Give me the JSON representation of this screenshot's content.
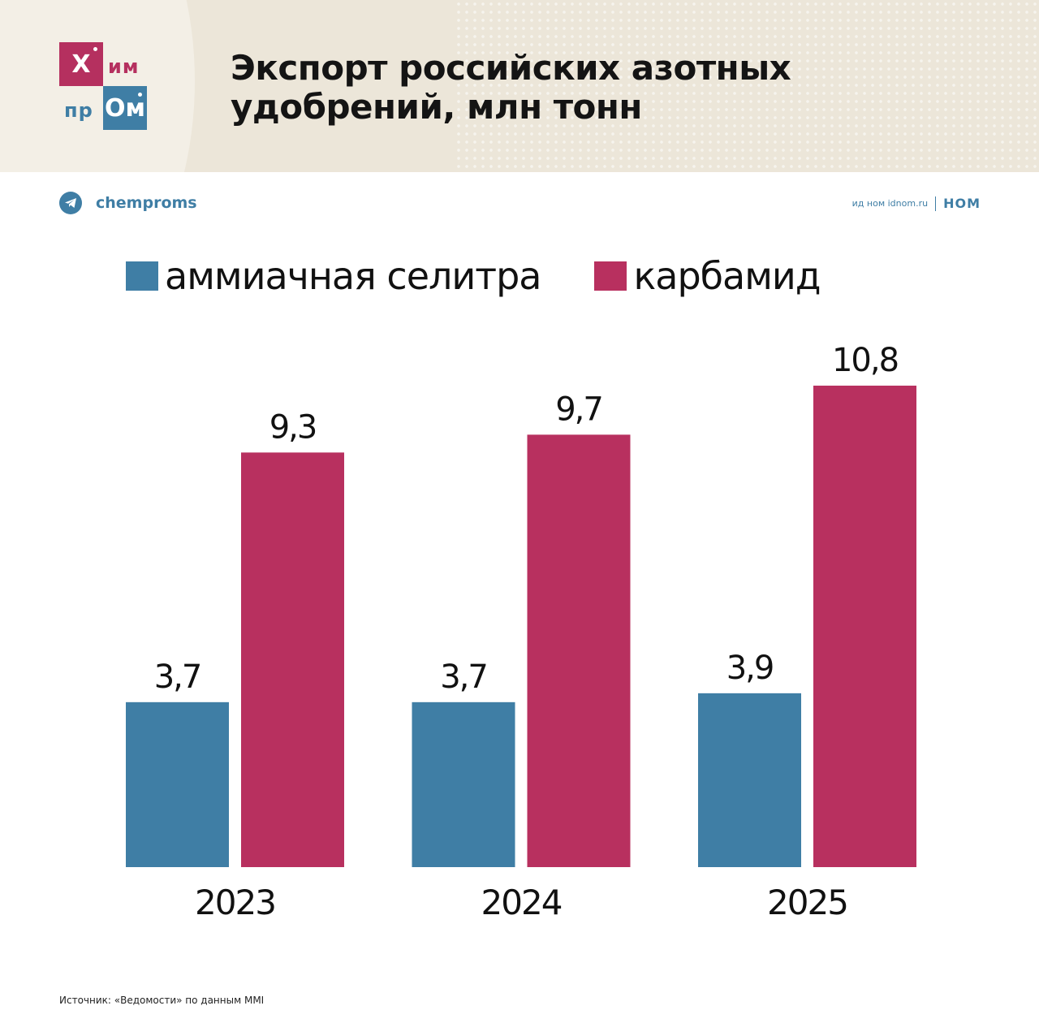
{
  "header": {
    "title": "Экспорт российских азотных удобрений, млн тонн",
    "logo": {
      "cell1": "Х",
      "text1": "им",
      "text2": "пр",
      "cell2": "Ом"
    }
  },
  "channel": {
    "name": "chemproms",
    "icon": "telegram-icon"
  },
  "brand": {
    "site": "ид ном idnom.ru",
    "name": "НОМ"
  },
  "colors": {
    "ammonium": "#3f7ea5",
    "urea": "#b8305f",
    "header_bg": "#ece6d9"
  },
  "chart_data": {
    "type": "bar",
    "title": "Экспорт российских азотных удобрений, млн тонн",
    "categories": [
      "2023",
      "2024",
      "2025"
    ],
    "series": [
      {
        "name": "аммиачная селитра",
        "values": [
          3.7,
          3.7,
          3.9
        ],
        "labels": [
          "3,7",
          "3,7",
          "3,9"
        ],
        "color": "#3f7ea5"
      },
      {
        "name": "карбамид",
        "values": [
          9.3,
          9.7,
          10.8
        ],
        "labels": [
          "9,3",
          "9,7",
          "10,8"
        ],
        "color": "#b8305f"
      }
    ],
    "ylim": [
      0,
      11
    ],
    "grid": false,
    "legend": "top-left"
  },
  "source": "Источник: «Ведомости» по данным MMI"
}
